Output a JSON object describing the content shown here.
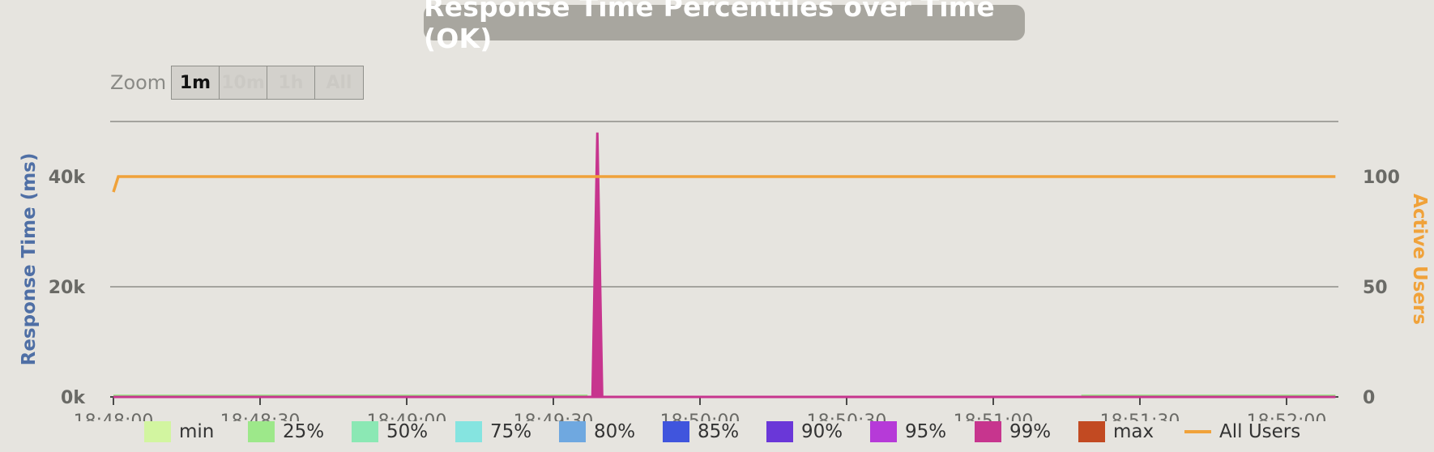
{
  "title": "Response Time Percentiles over Time (OK)",
  "zoom": {
    "label": "Zoom",
    "buttons": [
      "1m",
      "10m",
      "1h",
      "All"
    ],
    "selected": "1m"
  },
  "chart_data": {
    "type": "area",
    "ylabel": "Response Time (ms)",
    "y2label": "Active Users",
    "ylim": [
      0,
      50000
    ],
    "y2lim": [
      0,
      125
    ],
    "yticks": [
      "0k",
      "20k",
      "40k"
    ],
    "y2ticks": [
      "0",
      "50",
      "100"
    ],
    "xticks": [
      "18:48:00",
      "18:48:30",
      "18:49:00",
      "18:49:30",
      "18:50:00",
      "18:50:30",
      "18:51:00",
      "18:51:30",
      "18:52:00"
    ],
    "xlim": [
      "18:48:00",
      "18:52:10"
    ],
    "grid": true,
    "legend_position": "bottom",
    "series": [
      {
        "name": "min",
        "color": "#d2f5a0"
      },
      {
        "name": "25%",
        "color": "#9de88a"
      },
      {
        "name": "50%",
        "color": "#8be8b4"
      },
      {
        "name": "75%",
        "color": "#85e4e0"
      },
      {
        "name": "80%",
        "color": "#6fa8e0"
      },
      {
        "name": "85%",
        "color": "#4055dd"
      },
      {
        "name": "90%",
        "color": "#6a37d8"
      },
      {
        "name": "95%",
        "color": "#b63ad8"
      },
      {
        "name": "99%",
        "color": "#c7358e",
        "points": [
          [
            "18:48:00",
            0
          ],
          [
            "18:49:38",
            0
          ],
          [
            "18:49:39",
            48000
          ],
          [
            "18:49:40",
            0
          ],
          [
            "18:52:10",
            0
          ]
        ]
      },
      {
        "name": "max",
        "color": "#c24a22"
      },
      {
        "name": "All Users",
        "color": "#f0a23a",
        "type": "line",
        "points": [
          [
            "18:48:00",
            93
          ],
          [
            "18:48:01",
            100
          ],
          [
            "18:52:10",
            100
          ]
        ]
      }
    ],
    "baseline_note_series": "min",
    "baseline_segments": [
      [
        "18:48:00",
        "18:49:37"
      ],
      [
        "18:51:18",
        "18:52:10"
      ]
    ]
  }
}
